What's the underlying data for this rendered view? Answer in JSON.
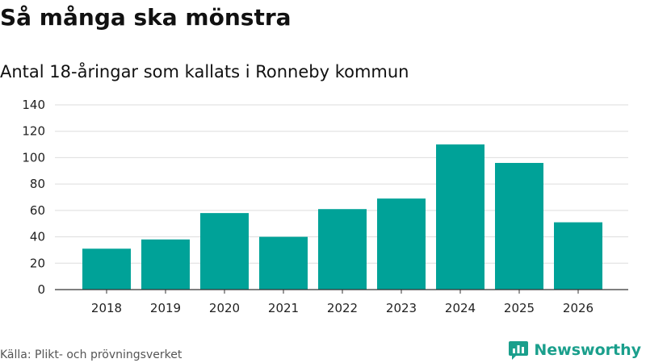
{
  "title": "Så många ska mönstra",
  "subtitle": "Antal 18-åringar som kallats i Ronneby kommun",
  "source": "Källa: Plikt- och prövningsverket",
  "brand": {
    "name": "Newsworthy",
    "icon": "newsworthy-logo-icon",
    "color": "#1a9f8c"
  },
  "chart_data": {
    "type": "bar",
    "title": "Så många ska mönstra",
    "subtitle": "Antal 18-åringar som kallats i Ronneby kommun",
    "xlabel": "",
    "ylabel": "",
    "categories": [
      "2018",
      "2019",
      "2020",
      "2021",
      "2022",
      "2023",
      "2024",
      "2025",
      "2026"
    ],
    "values": [
      31,
      38,
      58,
      40,
      61,
      69,
      110,
      96,
      51
    ],
    "ylim": [
      0,
      140
    ],
    "yticks": [
      0,
      20,
      40,
      60,
      80,
      100,
      120,
      140
    ],
    "grid": true,
    "bar_color": "#00a298"
  }
}
